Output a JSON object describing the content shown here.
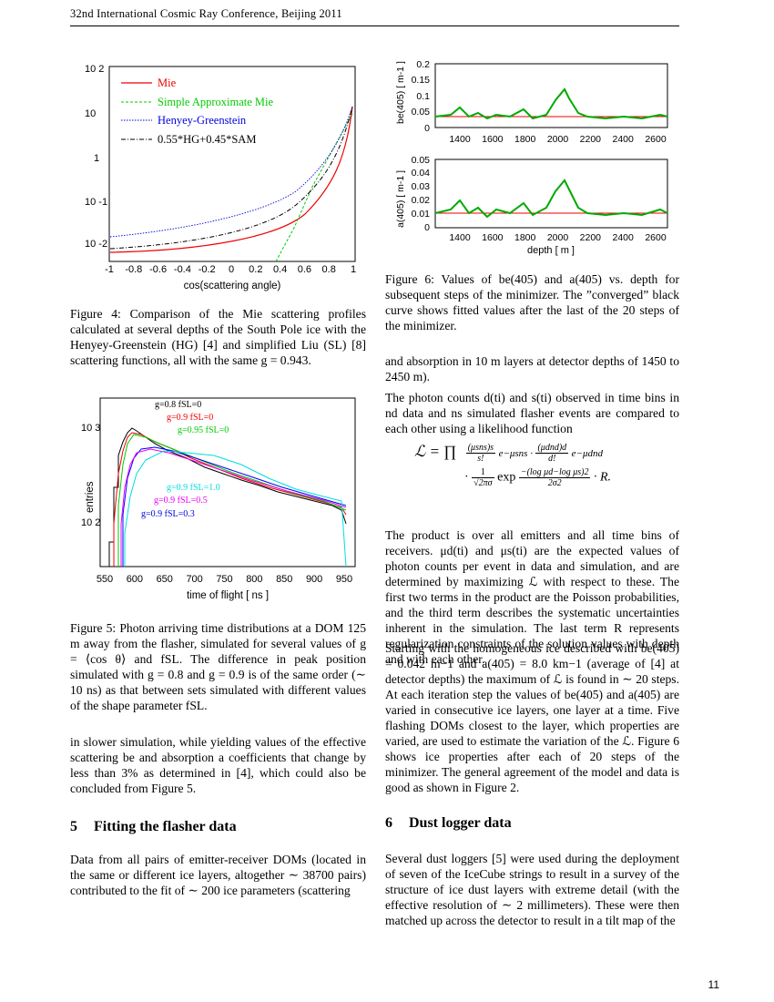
{
  "header": {
    "text": "32nd International Cosmic Ray Conference, Beijing 2011"
  },
  "page_number": "11",
  "figures": {
    "fig4": {
      "xlabel": "cos(scattering angle)",
      "ytick_labels": [
        "10 2",
        "10",
        "1",
        "10 -1",
        "10 -2"
      ],
      "xtick_labels": [
        "-1",
        "-0.8",
        "-0.6",
        "-0.4",
        "-0.2",
        "0",
        "0.2",
        "0.4",
        "0.6",
        "0.8",
        "1"
      ],
      "legend": [
        "Mie",
        "Simple Approximate Mie",
        "Henyey-Greenstein",
        "0.55*HG+0.45*SAM"
      ],
      "caption": "Figure 4: Comparison of the Mie scattering profiles calculated at several depths of the South Pole ice with the Henyey-Greenstein (HG) [4] and simplified Liu (SL) [8] scattering functions, all with the same g = 0.943."
    },
    "fig5": {
      "xlabel": "time of flight [ ns ]",
      "ylabel": "entries",
      "xtick_labels": [
        "550",
        "600",
        "650",
        "700",
        "750",
        "800",
        "850",
        "900",
        "950"
      ],
      "ytick_labels": [
        "10 3",
        "10 2"
      ],
      "annotations": [
        "g=0.8 fSL=0",
        "g=0.9 fSL=0",
        "g=0.95 fSL=0",
        "g=0.9 fSL=1.0",
        "g=0.9 fSL=0.5",
        "g=0.9 fSL=0.3"
      ],
      "caption": "Figure 5: Photon arriving time distributions at a DOM 125 m away from the flasher, simulated for several values of g = ⟨cos θ⟩ and fSL. The difference in peak position simulated with g = 0.8 and g = 0.9 is of the same order (∼ 10 ns) as that between sets simulated with different values of the shape parameter fSL."
    },
    "fig6": {
      "top_ylabel": "be(405) [ m-1 ]",
      "top_yticks": [
        "0.2",
        "0.15",
        "0.1",
        "0.05",
        "0"
      ],
      "bottom_ylabel": "a(405) [ m-1 ]",
      "bottom_yticks": [
        "0.05",
        "0.04",
        "0.03",
        "0.02",
        "0.01",
        "0"
      ],
      "xtick_labels": [
        "1400",
        "1600",
        "1800",
        "2000",
        "2200",
        "2400",
        "2600"
      ],
      "xlabel": "depth [ m ]",
      "caption": "Figure 6: Values of be(405) and a(405) vs. depth for subsequent steps of the minimizer. The ”converged” black curve shows fitted values after the last of the 20 steps of the minimizer."
    }
  },
  "left_text": {
    "para1": "in slower simulation, while yielding values of the effective scattering be and absorption a coefficients that change by less than 3% as determined in [4], which could also be concluded from Figure 5.",
    "section5_num": "5",
    "section5_title": "Fitting the flasher data",
    "para2": "Data from all pairs of emitter-receiver DOMs (located in the same or different ice layers, altogether ∼ 38700 pairs) contributed to the fit of ∼ 200 ice parameters (scattering"
  },
  "right_text": {
    "para1": "and absorption in 10 m layers at detector depths of 1450 to 2450 m).",
    "para2": "The photon counts d(ti) and s(ti) observed in time bins in nd data and ns simulated flasher events are compared to each other using a likelihood function",
    "para3": "The product is over all emitters and all time bins of receivers. μd(ti) and μs(ti) are the expected values of photon counts per event in data and simulation, and are determined by maximizing ℒ with respect to these. The first two terms in the product are the Poisson probabilities, and the third term describes the systematic uncertainties inherent in the simulation. The last term R represents regularization constraints of the solution values with depth and with each other.",
    "para4": "Starting with the homogeneous ice described with be(405) = 0.042 m−1 and a(405) = 8.0 km−1 (average of [4] at detector depths) the maximum of ℒ is found in ∼ 20 steps. At each iteration step the values of be(405) and a(405) are varied in consecutive ice layers, one layer at a time. Five flashing DOMs closest to the layer, which properties are varied, are used to estimate the variation of the ℒ. Figure 6 shows ice properties after each of 20 steps of the minimizer. The general agreement of the model and data is good as shown in Figure 2.",
    "section6_num": "6",
    "section6_title": "Dust logger data",
    "para5": "Several dust loggers [5] were used during the deployment of seven of the IceCube strings to result in a survey of the structure of ice dust layers with extreme detail (with the effective resolution of ∼ 2 millimeters). These were then matched up across the detector to result in a tilt map of the"
  },
  "formula": {
    "lhs": "ℒ = ∏",
    "t1_num": "(μsns)s",
    "t1_den": "s!",
    "t1_exp": "e−μsns ·",
    "t2_num": "(μdnd)d",
    "t2_den": "d!",
    "t2_exp": "e−μdnd",
    "t3_pre": "·",
    "t3_num": "1",
    "t3_den": "√2πσ",
    "t3_exp": "exp",
    "t3_enum": "−(log μd−log μs)2",
    "t3_eden": "2σ2",
    "t3_post": "· R."
  }
}
